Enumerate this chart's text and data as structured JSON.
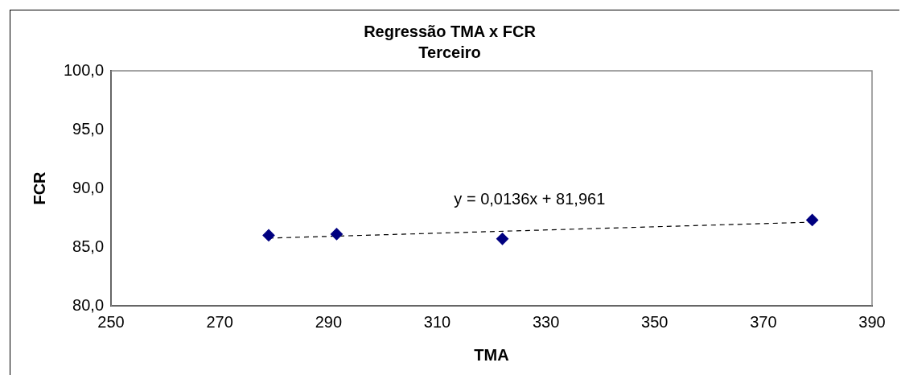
{
  "chart_data": {
    "type": "scatter",
    "title": "Regressão TMA x FCR",
    "subtitle": "Terceiro",
    "xlabel": "TMA",
    "ylabel": "FCR",
    "x": [
      279,
      291.5,
      322,
      379
    ],
    "series": [
      {
        "color": "#000080",
        "values": [
          86.0,
          86.1,
          85.7,
          87.3
        ],
        "marker": "diamond"
      },
      {
        "type": "line",
        "color": "#000000",
        "x": [
          279,
          379
        ],
        "values": [
          85.76,
          87.12
        ],
        "line_style": "dashed",
        "marker": "none"
      }
    ],
    "xlim": [
      250,
      390
    ],
    "xticks": [
      250,
      270,
      290,
      310,
      330,
      350,
      370,
      390
    ],
    "ylim": [
      80,
      100
    ],
    "yticks": [
      {
        "value": 80,
        "label": "80,0"
      },
      {
        "value": 85,
        "label": "85,0"
      },
      {
        "value": 90,
        "label": "90,0"
      },
      {
        "value": 95,
        "label": "95,0"
      },
      {
        "value": 100,
        "label": "100,0"
      }
    ],
    "grid": false,
    "legend": false,
    "annotations": [
      "y = 0,0136x + 81,961"
    ]
  }
}
